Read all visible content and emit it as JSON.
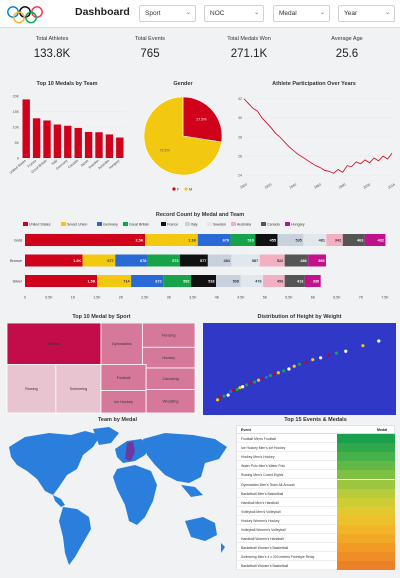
{
  "header": {
    "title": "Dashboard",
    "filters": [
      {
        "label": "Sport"
      },
      {
        "label": "NOC"
      },
      {
        "label": "Medal"
      },
      {
        "label": "Year"
      }
    ]
  },
  "kpis": [
    {
      "label": "Total Athletes",
      "value": "133.8K"
    },
    {
      "label": "Total Events",
      "value": "765"
    },
    {
      "label": "Total Medals Won",
      "value": "271.1K"
    },
    {
      "label": "Average Age",
      "value": "25.6"
    }
  ],
  "charts_titles": {
    "top10": "Top 10 Medals by Team",
    "gender": "Gender",
    "participation": "Athlete Participation Over Years",
    "record": "Record Count by Medal and Team",
    "treemap": "Top 10 Medal by Sport",
    "height": "Distribution of Height by Weight",
    "map": "Team by Medal",
    "events": "Top 15 Events & Medals"
  },
  "chart_data": [
    {
      "type": "bar",
      "title": "Top 10 Medals by Team",
      "categories": [
        "United States",
        "France",
        "Great Britain",
        "Italy",
        "Germany",
        "Canada",
        "Japan",
        "Sweden",
        "Australia",
        "Hungary"
      ],
      "values": [
        18.9,
        12.8,
        12.1,
        10.8,
        10.4,
        9.7,
        8.4,
        8.3,
        7.6,
        6.6
      ],
      "ylim": [
        0,
        20
      ],
      "yticks": [
        "0",
        "5K",
        "10K",
        "15K",
        "20K"
      ],
      "color": "#d0021b"
    },
    {
      "type": "pie",
      "title": "Gender",
      "slices": [
        {
          "label": "F",
          "value": 27.5,
          "color": "#d0021b",
          "text": "27.5%"
        },
        {
          "label": "M",
          "value": 72.5,
          "color": "#f2c811",
          "text": "72.5%"
        }
      ],
      "legend": [
        "F",
        "M"
      ]
    },
    {
      "type": "line",
      "title": "Athlete Participation Over Years",
      "x": [
        "1896",
        "1900",
        "1904",
        "1908",
        "1912",
        "1920",
        "1924",
        "1928",
        "1932",
        "1936",
        "1948",
        "1952",
        "1956",
        "1960",
        "1964",
        "1968",
        "1972",
        "1976",
        "1980",
        "1984",
        "1988",
        "1992",
        "1994",
        "1996",
        "1998",
        "2000",
        "2002",
        "2004",
        "2006",
        "2008",
        "2010",
        "2012",
        "2014",
        "2016"
      ],
      "y": [
        32,
        31.5,
        31,
        30.7,
        30,
        29.5,
        29,
        28.4,
        28,
        27.5,
        27,
        26.6,
        26.2,
        25.9,
        25.6,
        25.3,
        25,
        24.8,
        24.5,
        24.4,
        24.2,
        24.6,
        24.3,
        25,
        24.9,
        25.4,
        25.2,
        25.6,
        25.3,
        25.8,
        25.5,
        26,
        25.7,
        26.3
      ],
      "xticks": [
        "1900",
        "1920",
        "1940",
        "1960",
        "1980",
        "2000",
        "2016"
      ],
      "yticks": [
        "24",
        "26",
        "28",
        "30",
        "32"
      ],
      "ylim": [
        23.5,
        32.5
      ],
      "color": "#d0021b"
    },
    {
      "type": "bar",
      "title": "Record Count by Medal and Team",
      "orientation": "horizontal-stacked",
      "categories": [
        "Gold",
        "Bronze",
        "Silver"
      ],
      "series": [
        {
          "name": "United States",
          "color": "#d0021b",
          "values": [
            2.5,
            1.2,
            1.5
          ],
          "labels": [
            "2.5K",
            "1.2K",
            "1.5K"
          ]
        },
        {
          "name": "Soviet Union",
          "color": "#f2c811",
          "values": [
            1.1,
            0.68,
            0.71
          ],
          "labels": [
            "1.1K",
            "677",
            "714"
          ]
        },
        {
          "name": "Germany",
          "color": "#2a6ad7",
          "values": [
            0.68,
            0.68,
            0.67
          ],
          "labels": [
            "679",
            "678",
            "672"
          ]
        },
        {
          "name": "Great Britain",
          "color": "#16a34a",
          "values": [
            0.52,
            0.67,
            0.58
          ],
          "labels": [
            "519",
            "673",
            "582"
          ]
        },
        {
          "name": "France",
          "color": "#111111",
          "values": [
            0.46,
            0.58,
            0.52
          ],
          "labels": [
            "455",
            "577",
            "518"
          ]
        },
        {
          "name": "Italy",
          "color": "#c7d2dc",
          "values": [
            0.54,
            0.49,
            0.51
          ],
          "labels": [
            "535",
            "484",
            "508"
          ]
        },
        {
          "name": "Sweden",
          "color": "#e0e7ed",
          "values": [
            0.48,
            0.59,
            0.47
          ],
          "labels": [
            "481",
            "587",
            "476"
          ]
        },
        {
          "name": "Australia",
          "color": "#f3b0c3",
          "values": [
            0.34,
            0.52,
            0.45
          ],
          "labels": [
            "342",
            "522",
            "453"
          ]
        },
        {
          "name": "Canada",
          "color": "#555555",
          "values": [
            0.46,
            0.49,
            0.42
          ],
          "labels": [
            "463",
            "486",
            "413"
          ]
        },
        {
          "name": "Hungary",
          "color": "#c0128c",
          "values": [
            0.43,
            0.37,
            0.33
          ],
          "labels": [
            "432",
            "365",
            "330"
          ]
        }
      ],
      "xticks": [
        "0",
        "0.5K",
        "1K",
        "1.5K",
        "2K",
        "2.5K",
        "3K",
        "3.5K",
        "4K",
        "4.5K",
        "5K",
        "5.5K",
        "6K",
        "6.5K",
        "7K",
        "7.5K"
      ],
      "xlim": [
        0,
        7.5
      ]
    },
    {
      "type": "heatmap",
      "title": "Top 10 Medal by Sport",
      "tiles": [
        {
          "label": "Athletics",
          "value": 3969
        },
        {
          "label": "Swimming",
          "value": 3048
        },
        {
          "label": "Rowing",
          "value": 2945
        },
        {
          "label": "Gymnastics",
          "value": 2256
        },
        {
          "label": "Fencing",
          "value": 1743
        },
        {
          "label": "Hockey",
          "value": 1530
        },
        {
          "label": "Football",
          "value": 1497
        },
        {
          "label": "Ice Hockey",
          "value": 1530
        },
        {
          "label": "Canoeing",
          "value": 1070
        },
        {
          "label": "Wrestling",
          "value": 1056
        }
      ],
      "colors": [
        "#c30d4b",
        "#d5789a",
        "#e8c3d0"
      ]
    },
    {
      "type": "scatter",
      "title": "Distribution of Height by Weight",
      "background": "#2f38c7",
      "points": [
        {
          "x": 28,
          "y": 147,
          "c": "#f2c811"
        },
        {
          "x": 30,
          "y": 150,
          "c": "#d0021b"
        },
        {
          "x": 33,
          "y": 151,
          "c": "#16a34a"
        },
        {
          "x": 36,
          "y": 152,
          "c": "#ffffff"
        },
        {
          "x": 38,
          "y": 156,
          "c": "#2a6ad7"
        },
        {
          "x": 40,
          "y": 157,
          "c": "#d0021b"
        },
        {
          "x": 43,
          "y": 158,
          "c": "#16a34a"
        },
        {
          "x": 45,
          "y": 160,
          "c": "#f2c811"
        },
        {
          "x": 47,
          "y": 161,
          "c": "#ffffff"
        },
        {
          "x": 50,
          "y": 163,
          "c": "#16a34a"
        },
        {
          "x": 53,
          "y": 165,
          "c": "#d0021b"
        },
        {
          "x": 56,
          "y": 166,
          "c": "#16a34a"
        },
        {
          "x": 59,
          "y": 168,
          "c": "#f2c811"
        },
        {
          "x": 62,
          "y": 170,
          "c": "#d0021b"
        },
        {
          "x": 65,
          "y": 171,
          "c": "#2a6ad7"
        },
        {
          "x": 68,
          "y": 173,
          "c": "#16a34a"
        },
        {
          "x": 71,
          "y": 175,
          "c": "#d0021b"
        },
        {
          "x": 74,
          "y": 176,
          "c": "#f2c811"
        },
        {
          "x": 78,
          "y": 178,
          "c": "#16a34a"
        },
        {
          "x": 82,
          "y": 180,
          "c": "#ffffff"
        },
        {
          "x": 86,
          "y": 183,
          "c": "#f2c811"
        },
        {
          "x": 90,
          "y": 185,
          "c": "#16a34a"
        },
        {
          "x": 95,
          "y": 187,
          "c": "#d0021b"
        },
        {
          "x": 100,
          "y": 190,
          "c": "#f2c811"
        },
        {
          "x": 106,
          "y": 192,
          "c": "#ffffff"
        },
        {
          "x": 112,
          "y": 195,
          "c": "#d0021b"
        },
        {
          "x": 118,
          "y": 197,
          "c": "#16a34a"
        },
        {
          "x": 125,
          "y": 199,
          "c": "#ffffff"
        },
        {
          "x": 138,
          "y": 205,
          "c": "#f2c811"
        },
        {
          "x": 150,
          "y": 210,
          "c": "#ffffff"
        }
      ],
      "xlim": [
        20,
        160
      ],
      "ylim": [
        135,
        225
      ]
    },
    {
      "type": "table",
      "title": "Top 15 Events & Medals",
      "columns": [
        "Event",
        "Medal"
      ],
      "rows": [
        {
          "event": "Football Men's Football",
          "medal": 1.5,
          "color": "#1aa04c"
        },
        {
          "event": "Ice Hockey Men's Ice Hockey",
          "medal": 1.5,
          "color": "#2fa84b"
        },
        {
          "event": "Hockey Men's Hockey",
          "medal": 1.4,
          "color": "#46b04a"
        },
        {
          "event": "Water Polo Men's Water Polo",
          "medal": 1.3,
          "color": "#62b846"
        },
        {
          "event": "Rowing Men's Coxed Eights",
          "medal": 1.2,
          "color": "#7fc043"
        },
        {
          "event": "Gymnastics Men's Team All-Around",
          "medal": 1.1,
          "color": "#9cc63f"
        },
        {
          "event": "Basketball Men's Basketball",
          "medal": 1.0,
          "color": "#b8cb3a"
        },
        {
          "event": "Handball Men's Handball",
          "medal": 1.0,
          "color": "#cfcd34"
        },
        {
          "event": "Volleyball Men's Volleyball",
          "medal": 1.0,
          "color": "#e2c92f"
        },
        {
          "event": "Hockey Women's Hockey",
          "medal": 0.9,
          "color": "#edc12b"
        },
        {
          "event": "Volleyball Women's Volleyball",
          "medal": 0.9,
          "color": "#f2b528"
        },
        {
          "event": "Handball Women's Handball",
          "medal": 0.9,
          "color": "#f2a827"
        },
        {
          "event": "Basketball Women's Basketball",
          "medal": 0.8,
          "color": "#f19b26"
        },
        {
          "event": "Swimming Men's 4 x 200 metres Freestyle Relay",
          "medal": 0.8,
          "color": "#ef8d26"
        },
        {
          "event": "Basketball Women's Basketball",
          "medal": 0.8,
          "color": "#ec8026"
        }
      ]
    }
  ],
  "map": {
    "ocean": "#ffffff",
    "land": "#2a7fdc",
    "highlight": "#6a3aa0"
  },
  "icons": {
    "rings": "olympic-rings-icon",
    "chevron": "chevron-down-icon"
  }
}
